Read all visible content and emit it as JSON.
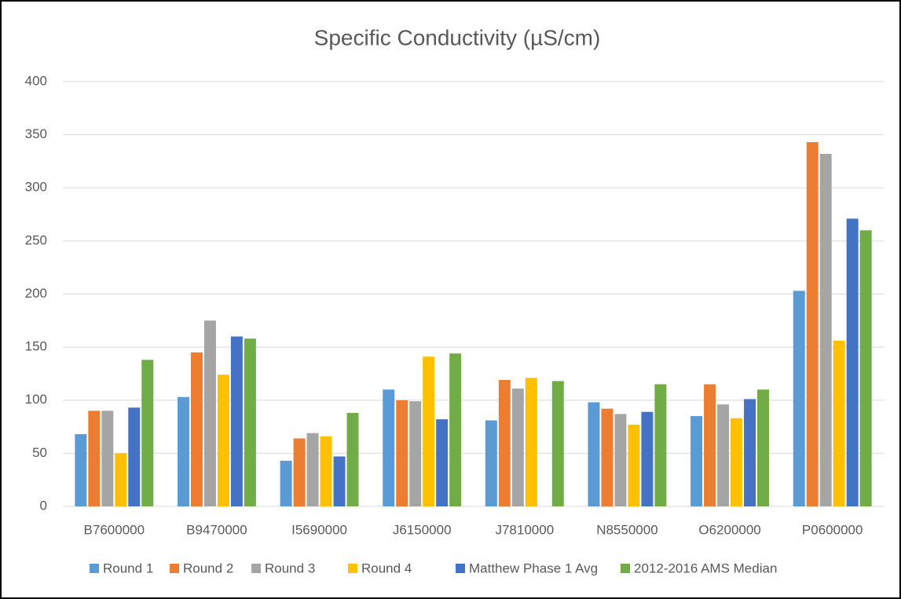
{
  "chart_data": {
    "type": "bar",
    "title": "Specific Conductivity (µS/cm)",
    "categories": [
      "B7600000",
      "B9470000",
      "I5690000",
      "J6150000",
      "J7810000",
      "N8550000",
      "O6200000",
      "P0600000"
    ],
    "series": [
      {
        "name": "Round 1",
        "color": "#5b9bd5",
        "values": [
          68,
          103,
          43,
          110,
          81,
          98,
          85,
          203
        ]
      },
      {
        "name": "Round 2",
        "color": "#ed7d31",
        "values": [
          90,
          145,
          64,
          100,
          119,
          92,
          115,
          343
        ]
      },
      {
        "name": "Round 3",
        "color": "#a5a5a5",
        "values": [
          90,
          175,
          69,
          99,
          111,
          87,
          96,
          332
        ]
      },
      {
        "name": "Round 4",
        "color": "#ffc000",
        "values": [
          50,
          124,
          66,
          141,
          121,
          77,
          83,
          156
        ]
      },
      {
        "name": "Matthew Phase 1 Avg",
        "color": "#4472c4",
        "values": [
          93,
          160,
          47,
          82,
          null,
          89,
          101,
          271
        ]
      },
      {
        "name": "2012-2016 AMS Median",
        "color": "#70ad47",
        "values": [
          138,
          158,
          88,
          144,
          118,
          115,
          110,
          260
        ]
      }
    ],
    "ylim": [
      0,
      400
    ],
    "yticks": [
      0,
      50,
      100,
      150,
      200,
      250,
      300,
      350,
      400
    ],
    "grid": true,
    "legend": "bottom"
  }
}
